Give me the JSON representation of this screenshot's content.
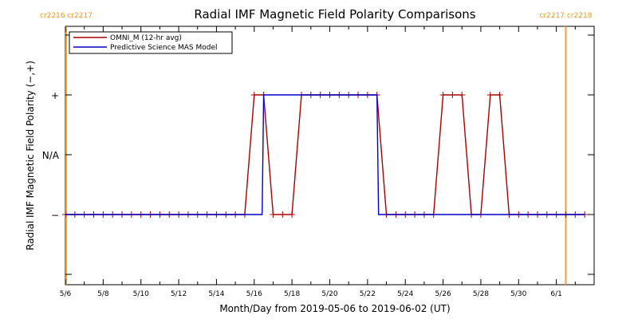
{
  "chart_data": {
    "type": "line",
    "title": "Radial IMF Magnetic Field Polarity Comparisons",
    "xlabel": "Month/Day from 2019-05-06 to 2019-06-02 (UT)",
    "ylabel": "Radial IMF Magnetic Field Polarity (−,+)",
    "x_range": [
      "2019-05-06",
      "2019-06-02"
    ],
    "x_ticks": [
      "5/6",
      "5/8",
      "5/10",
      "5/12",
      "5/14",
      "5/16",
      "5/18",
      "5/20",
      "5/22",
      "5/24",
      "5/26",
      "5/28",
      "5/30",
      "6/1"
    ],
    "y_ticks": [
      "−",
      "N/A",
      "+"
    ],
    "y_range": [
      "",
      ""
    ],
    "grid": false,
    "legend_position": "top-left",
    "carrington_markers": [
      {
        "date": "2019-05-06T00:00",
        "left_label": "cr2216",
        "right_label": "cr2217",
        "side": "left"
      },
      {
        "date": "2019-06-01T12:00",
        "left_label": "cr2217",
        "right_label": "cr2218",
        "side": "right"
      }
    ],
    "series": [
      {
        "name": "OMNI_M (12-hr avg)",
        "color": "#aa0000",
        "markers": "plus",
        "points": [
          [
            "2019-05-06T00:00",
            "−"
          ],
          [
            "2019-05-06T12:00",
            "−"
          ],
          [
            "2019-05-07T00:00",
            "−"
          ],
          [
            "2019-05-07T12:00",
            "−"
          ],
          [
            "2019-05-08T00:00",
            "−"
          ],
          [
            "2019-05-08T12:00",
            "−"
          ],
          [
            "2019-05-09T00:00",
            "−"
          ],
          [
            "2019-05-09T12:00",
            "−"
          ],
          [
            "2019-05-10T00:00",
            "−"
          ],
          [
            "2019-05-10T12:00",
            "−"
          ],
          [
            "2019-05-11T00:00",
            "−"
          ],
          [
            "2019-05-11T12:00",
            "−"
          ],
          [
            "2019-05-12T00:00",
            "−"
          ],
          [
            "2019-05-12T12:00",
            "−"
          ],
          [
            "2019-05-13T00:00",
            "−"
          ],
          [
            "2019-05-13T12:00",
            "−"
          ],
          [
            "2019-05-14T00:00",
            "−"
          ],
          [
            "2019-05-14T12:00",
            "−"
          ],
          [
            "2019-05-15T00:00",
            "−"
          ],
          [
            "2019-05-15T12:00",
            "−"
          ],
          [
            "2019-05-16T00:00",
            "+"
          ],
          [
            "2019-05-16T12:00",
            "+"
          ],
          [
            "2019-05-17T00:00",
            "−"
          ],
          [
            "2019-05-17T12:00",
            "−"
          ],
          [
            "2019-05-18T00:00",
            "−"
          ],
          [
            "2019-05-18T12:00",
            "+"
          ],
          [
            "2019-05-19T00:00",
            "+"
          ],
          [
            "2019-05-19T12:00",
            "+"
          ],
          [
            "2019-05-20T00:00",
            "+"
          ],
          [
            "2019-05-20T12:00",
            "+"
          ],
          [
            "2019-05-21T00:00",
            "+"
          ],
          [
            "2019-05-21T12:00",
            "+"
          ],
          [
            "2019-05-22T00:00",
            "+"
          ],
          [
            "2019-05-22T12:00",
            "+"
          ],
          [
            "2019-05-23T00:00",
            "−"
          ],
          [
            "2019-05-23T12:00",
            "−"
          ],
          [
            "2019-05-24T00:00",
            "−"
          ],
          [
            "2019-05-24T12:00",
            "−"
          ],
          [
            "2019-05-25T00:00",
            "−"
          ],
          [
            "2019-05-25T12:00",
            "−"
          ],
          [
            "2019-05-26T00:00",
            "+"
          ],
          [
            "2019-05-26T12:00",
            "+"
          ],
          [
            "2019-05-27T00:00",
            "+"
          ],
          [
            "2019-05-27T12:00",
            "−"
          ],
          [
            "2019-05-28T00:00",
            "−"
          ],
          [
            "2019-05-28T12:00",
            "+"
          ],
          [
            "2019-05-29T00:00",
            "+"
          ],
          [
            "2019-05-29T12:00",
            "−"
          ],
          [
            "2019-05-30T00:00",
            "−"
          ],
          [
            "2019-05-30T12:00",
            "−"
          ],
          [
            "2019-05-31T00:00",
            "−"
          ],
          [
            "2019-05-31T12:00",
            "−"
          ],
          [
            "2019-06-01T00:00",
            "−"
          ],
          [
            "2019-06-01T12:00",
            "−"
          ],
          [
            "2019-06-02T00:00",
            "−"
          ],
          [
            "2019-06-02T12:00",
            "−"
          ]
        ]
      },
      {
        "name": "Predictive Science MAS Model",
        "color": "#0000cc",
        "markers": "none",
        "points": [
          [
            "2019-05-06T00:00",
            "−"
          ],
          [
            "2019-05-16T10:00",
            "−"
          ],
          [
            "2019-05-16T12:00",
            "+"
          ],
          [
            "2019-05-22T12:00",
            "+"
          ],
          [
            "2019-05-22T14:00",
            "−"
          ],
          [
            "2019-06-02T12:00",
            "−"
          ]
        ]
      }
    ]
  }
}
